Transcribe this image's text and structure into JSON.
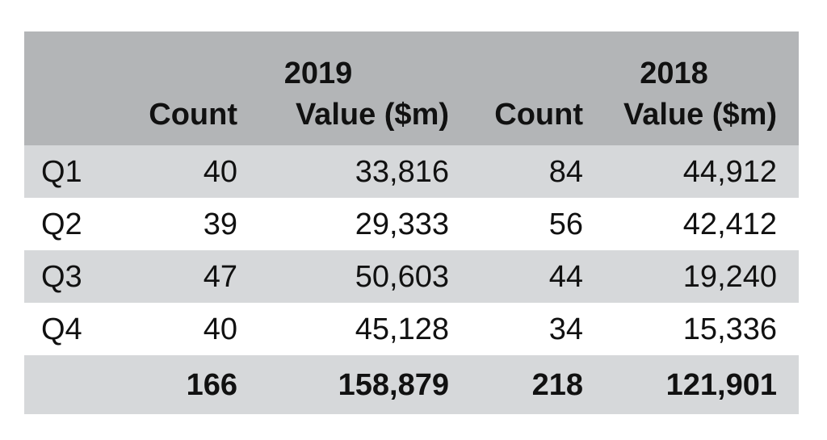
{
  "chart_data": {
    "type": "table",
    "year_groups": [
      "2019",
      "2018"
    ],
    "columns": [
      "Count",
      "Value ($m)",
      "Count",
      "Value ($m)"
    ],
    "rows": [
      {
        "label": "Q1",
        "cells": [
          "40",
          "33,816",
          "84",
          "44,912"
        ]
      },
      {
        "label": "Q2",
        "cells": [
          "39",
          "29,333",
          "56",
          "42,412"
        ]
      },
      {
        "label": "Q3",
        "cells": [
          "47",
          "50,603",
          "44",
          "19,240"
        ]
      },
      {
        "label": "Q4",
        "cells": [
          "40",
          "45,128",
          "34",
          "15,336"
        ]
      }
    ],
    "total": {
      "label": "",
      "cells": [
        "166",
        "158,879",
        "218",
        "121,901"
      ]
    },
    "series": [
      {
        "name": "2019 Count",
        "values": [
          40,
          39,
          47,
          40
        ]
      },
      {
        "name": "2019 Value ($m)",
        "values": [
          33816,
          29333,
          50603,
          45128
        ]
      },
      {
        "name": "2018 Count",
        "values": [
          84,
          56,
          44,
          34
        ]
      },
      {
        "name": "2018 Value ($m)",
        "values": [
          44912,
          42412,
          19240,
          15336
        ]
      }
    ],
    "categories": [
      "Q1",
      "Q2",
      "Q3",
      "Q4"
    ]
  },
  "colors": {
    "header_bg": "#b3b5b7",
    "shaded_row_bg": "#d6d8da",
    "plain_row_bg": "#ffffff"
  }
}
